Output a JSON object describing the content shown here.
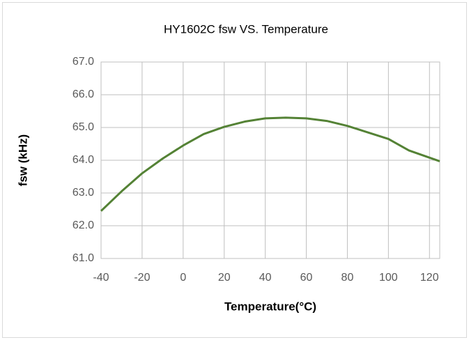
{
  "chart_data": {
    "type": "line",
    "title": "HY1602C fsw  VS. Temperature",
    "xlabel": "Temperature(°C)",
    "ylabel": "fsw (kHz)",
    "x": [
      -40,
      -30,
      -20,
      -10,
      0,
      10,
      20,
      30,
      40,
      50,
      60,
      70,
      80,
      90,
      100,
      110,
      125
    ],
    "series": [
      {
        "name": "fsw",
        "color": "#548235",
        "values": [
          62.45,
          63.05,
          63.6,
          64.05,
          64.45,
          64.8,
          65.02,
          65.18,
          65.28,
          65.3,
          65.28,
          65.2,
          65.05,
          64.85,
          64.65,
          64.3,
          63.97
        ]
      }
    ],
    "xlim": [
      -40,
      125
    ],
    "xticks": [
      -40,
      -20,
      0,
      20,
      40,
      60,
      80,
      100,
      120
    ],
    "ylim": [
      61,
      67
    ],
    "yticks": [
      {
        "value": 61,
        "label": "61.0"
      },
      {
        "value": 62,
        "label": "62.0"
      },
      {
        "value": 63,
        "label": "63.0"
      },
      {
        "value": 64,
        "label": "64.0"
      },
      {
        "value": 65,
        "label": "65.0"
      },
      {
        "value": 66,
        "label": "66.0"
      },
      {
        "value": 67,
        "label": "67.0"
      }
    ],
    "grid": true
  }
}
